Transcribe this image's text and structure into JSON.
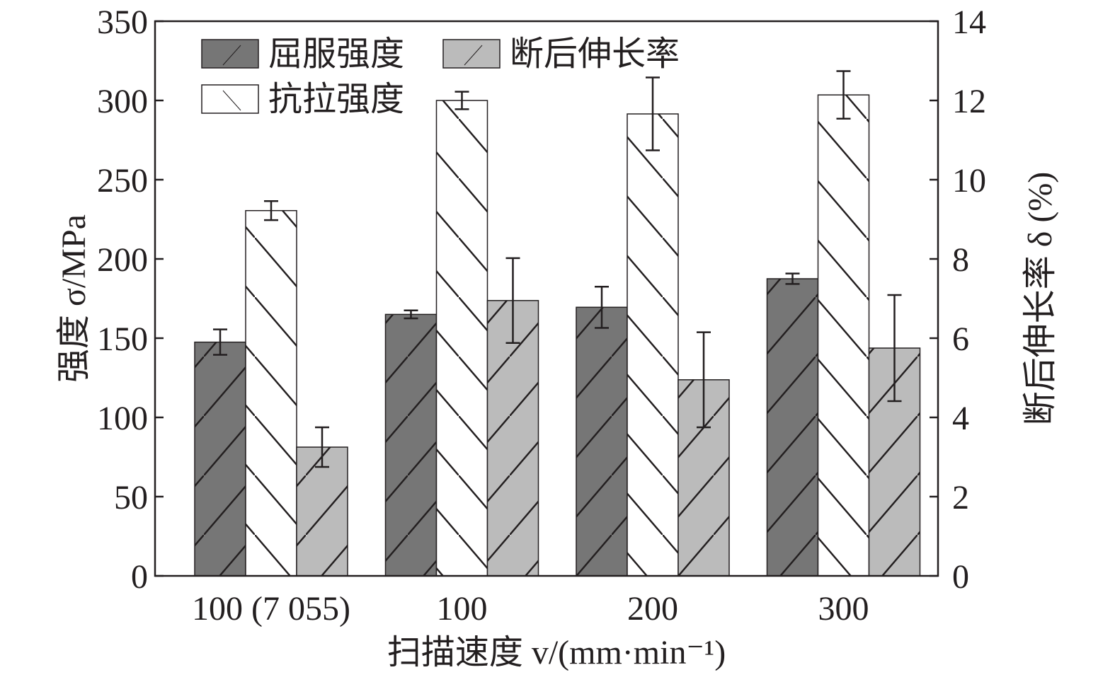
{
  "chart_data": {
    "type": "bar",
    "title": "",
    "xlabel": "扫描速度 v/(mm·min⁻¹)",
    "ylabel": "强度 σ/MPa",
    "ylabel_right": "断后伸长率 δ (%)",
    "ylim": [
      0,
      350
    ],
    "ylim_right": [
      0,
      14
    ],
    "yticks": [
      "0",
      "50",
      "100",
      "150",
      "200",
      "250",
      "300",
      "350"
    ],
    "yticks_right": [
      "0",
      "2",
      "4",
      "6",
      "8",
      "10",
      "12",
      "14"
    ],
    "categories": [
      "100 (7 055)",
      "100",
      "200",
      "300"
    ],
    "legend_position": "top-left",
    "grid": false,
    "series": [
      {
        "name": "屈服强度",
        "axis": "left",
        "color": "#767676",
        "hatch": "/",
        "values": [
          147.5,
          165,
          169.5,
          187.5
        ],
        "errors": [
          8,
          2.5,
          13,
          3.3
        ]
      },
      {
        "name": "抗拉强度",
        "axis": "left",
        "color": "#ffffff",
        "hatch": "\\",
        "values": [
          230.5,
          300,
          291.5,
          303.5
        ],
        "errors": [
          6,
          5.5,
          23,
          15
        ]
      },
      {
        "name": "断后伸长率",
        "axis": "right",
        "color": "#bbbbbb",
        "hatch": "/",
        "values": [
          3.25,
          6.95,
          4.95,
          5.75
        ],
        "errors": [
          0.5,
          1.07,
          1.2,
          1.34
        ]
      }
    ]
  }
}
